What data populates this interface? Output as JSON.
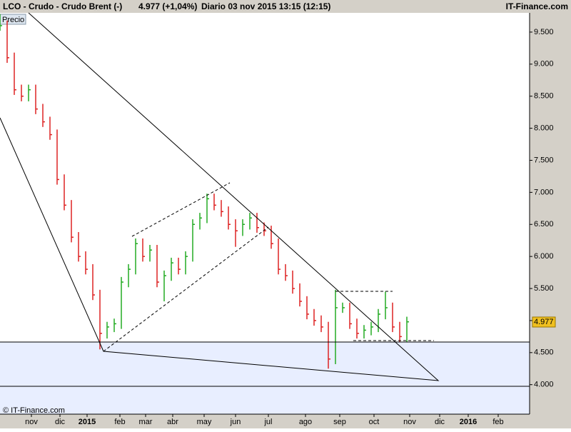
{
  "header": {
    "instrument": "LCO - Crudo - Crudo Brent (-)",
    "quote": "4.977 (+1,04%)",
    "period": "Diario  03 nov 2015 13:15 (12:15)",
    "brand": "IT-Finance.com"
  },
  "chart_data": {
    "type": "ohlc",
    "panel_label": "Precio",
    "copyright": "© IT-Finance.com",
    "x": [
      0,
      5,
      10,
      15,
      20,
      25,
      30,
      35,
      40,
      45,
      50,
      55,
      60,
      65,
      70,
      75,
      80,
      85,
      90,
      95,
      100,
      105,
      110,
      115,
      120,
      125,
      130,
      135,
      140,
      145,
      150,
      155,
      160,
      165,
      170,
      175,
      180,
      185,
      190,
      195,
      200,
      205,
      210,
      215,
      220,
      225,
      230,
      235,
      240,
      245,
      250,
      255,
      260,
      265,
      270,
      275,
      280,
      285
    ],
    "series": [
      {
        "high": [
          9.78,
          9.68,
          9.18,
          8.68,
          8.68,
          8.68,
          8.38,
          8.18,
          7.98,
          7.28,
          6.88,
          6.38,
          6.08,
          5.88,
          5.48,
          4.98,
          5.03,
          5.68,
          5.88,
          6.28,
          6.28,
          6.18,
          6.18,
          5.78,
          5.98,
          5.98,
          6.08,
          6.58,
          6.68,
          6.98,
          6.98,
          6.88,
          6.78,
          6.58,
          6.58,
          6.68,
          6.68,
          6.53,
          6.48,
          6.28,
          5.88,
          5.78,
          5.58,
          5.38,
          5.18,
          5.08,
          4.98,
          5.48,
          5.28,
          5.28,
          5.03,
          4.93,
          4.98,
          5.18,
          5.45,
          5.28,
          4.98,
          5.06
        ],
        "low": [
          9.52,
          9.02,
          8.52,
          8.42,
          8.42,
          8.22,
          8.02,
          7.82,
          7.12,
          6.72,
          6.22,
          5.92,
          5.72,
          5.32,
          4.55,
          4.72,
          4.82,
          4.87,
          5.52,
          5.72,
          5.92,
          5.92,
          5.52,
          5.3,
          5.62,
          5.72,
          5.72,
          5.92,
          6.42,
          6.52,
          6.72,
          6.62,
          6.42,
          6.15,
          6.32,
          6.42,
          6.37,
          6.32,
          6.12,
          5.72,
          5.62,
          5.42,
          5.22,
          5.02,
          4.92,
          4.82,
          4.25,
          4.32,
          5.12,
          4.87,
          4.72,
          4.72,
          4.77,
          4.82,
          5.02,
          4.82,
          4.67,
          4.67
        ],
        "close": [
          9.6,
          9.1,
          8.6,
          8.5,
          8.6,
          8.3,
          8.1,
          7.9,
          7.2,
          6.8,
          6.3,
          6.0,
          5.8,
          5.4,
          4.8,
          4.9,
          4.95,
          5.6,
          5.8,
          6.2,
          6.0,
          6.1,
          5.6,
          5.7,
          5.9,
          5.8,
          6.0,
          6.5,
          6.6,
          6.9,
          6.8,
          6.7,
          6.5,
          6.4,
          6.5,
          6.6,
          6.45,
          6.4,
          6.2,
          5.8,
          5.7,
          5.5,
          5.3,
          5.1,
          5.0,
          4.9,
          4.4,
          5.2,
          5.2,
          4.95,
          4.8,
          4.85,
          4.9,
          5.1,
          5.2,
          4.9,
          4.75,
          4.98
        ]
      }
    ],
    "up_color": "#22aa22",
    "down_color": "#dd2222",
    "last_value": 4.977,
    "xlim": [
      0,
      371
    ],
    "ylim": [
      3.54,
      9.8
    ],
    "xticks": [
      {
        "value": 22,
        "label": "nov"
      },
      {
        "value": 42,
        "label": "dic"
      },
      {
        "value": 61,
        "label": "2015"
      },
      {
        "value": 84,
        "label": "feb"
      },
      {
        "value": 102,
        "label": "mar"
      },
      {
        "value": 121,
        "label": "abr"
      },
      {
        "value": 143,
        "label": "may"
      },
      {
        "value": 165,
        "label": "jun"
      },
      {
        "value": 188,
        "label": "jul"
      },
      {
        "value": 214,
        "label": "ago"
      },
      {
        "value": 238,
        "label": "sep"
      },
      {
        "value": 262,
        "label": "oct"
      },
      {
        "value": 287,
        "label": "nov"
      },
      {
        "value": 308,
        "label": "dic"
      },
      {
        "value": 328,
        "label": "2016"
      },
      {
        "value": 349,
        "label": "feb"
      }
    ],
    "yticks": [
      {
        "value": 4,
        "label": "4.000"
      },
      {
        "value": 4.5,
        "label": "4.500"
      },
      {
        "value": 5,
        "label": "5.000"
      },
      {
        "value": 5.5,
        "label": "5.500"
      },
      {
        "value": 6,
        "label": "6.000"
      },
      {
        "value": 6.5,
        "label": "6.500"
      },
      {
        "value": 7,
        "label": "7.000"
      },
      {
        "value": 7.5,
        "label": "7.500"
      },
      {
        "value": 8,
        "label": "8.000"
      },
      {
        "value": 8.5,
        "label": "8.500"
      },
      {
        "value": 9,
        "label": "9.000"
      },
      {
        "value": 9.5,
        "label": "9.500"
      }
    ]
  }
}
